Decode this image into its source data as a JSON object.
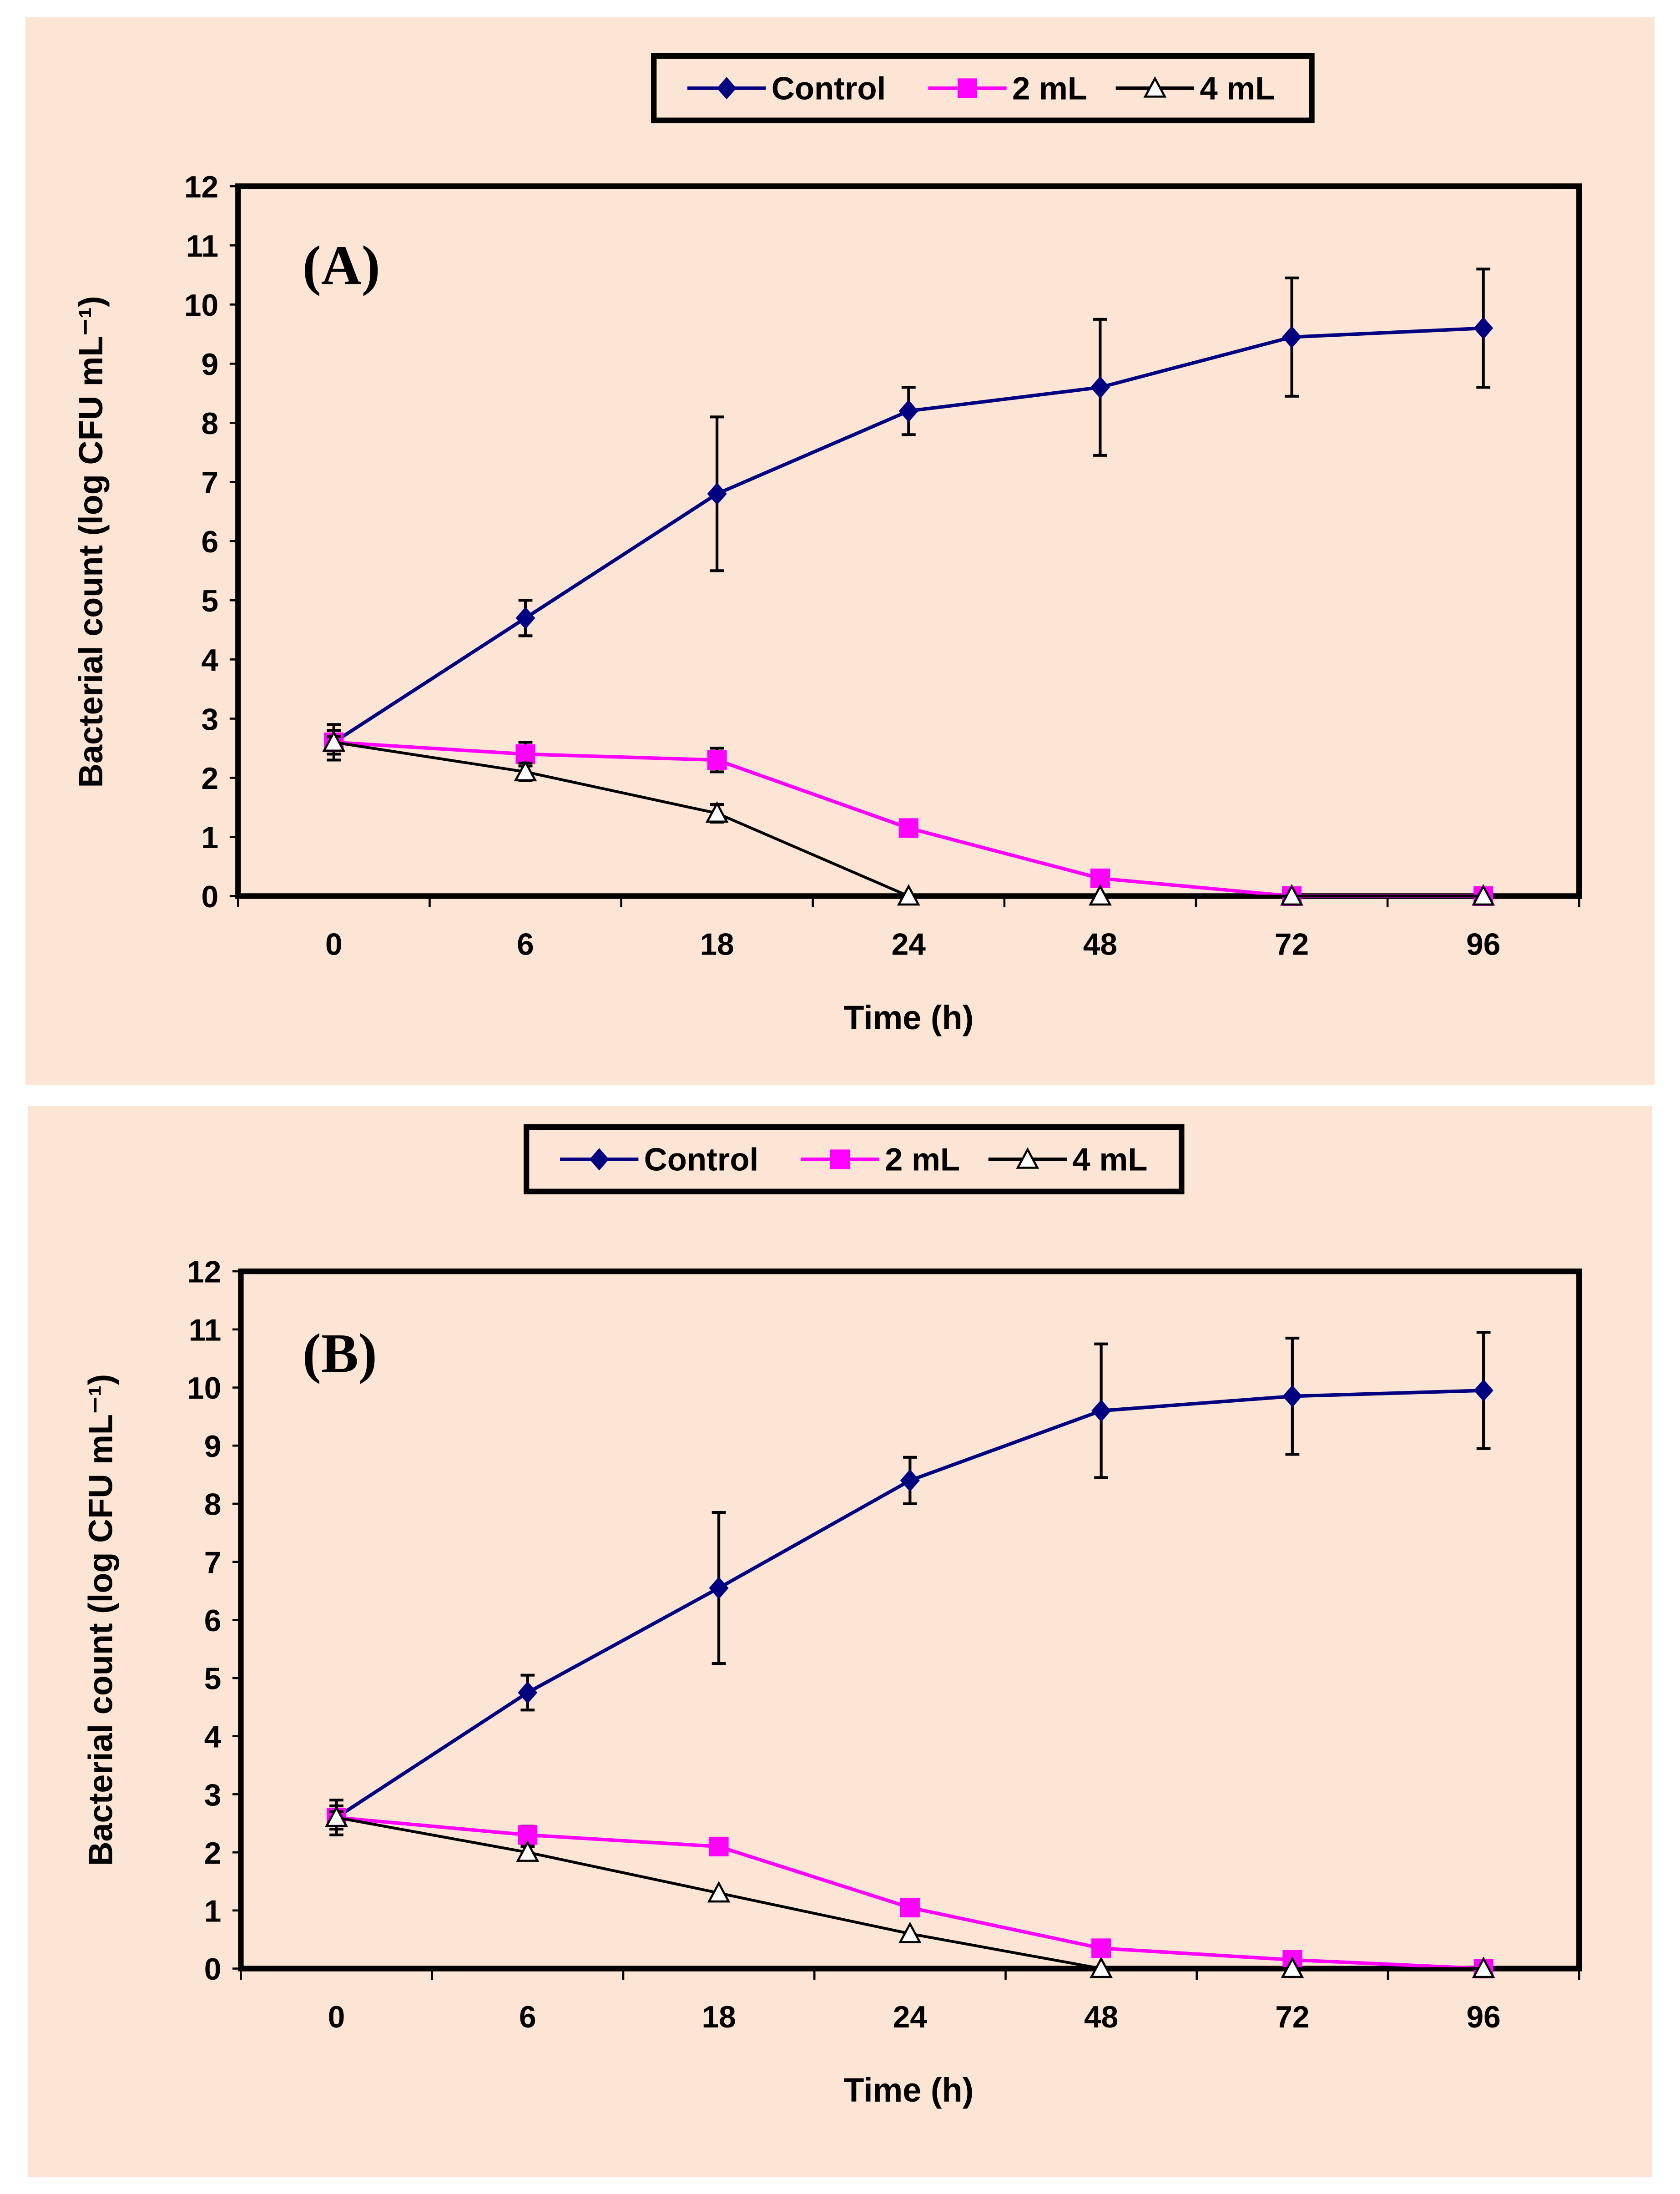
{
  "colors": {
    "background": "#fde5d6",
    "control": "#000080",
    "ml2": "#ff00ff",
    "ml4": "#000000"
  },
  "chart_data": [
    {
      "type": "line",
      "panel_label": "(A)",
      "xlabel": "Time (h)",
      "ylabel": "Bacterial count (log CFU mL⁻¹)",
      "categories": [
        "0",
        "6",
        "18",
        "24",
        "48",
        "72",
        "96"
      ],
      "ylim": [
        0,
        12
      ],
      "yticks": [
        "0",
        "1",
        "2",
        "3",
        "4",
        "5",
        "6",
        "7",
        "8",
        "9",
        "10",
        "11",
        "12"
      ],
      "legend_position": "top-center",
      "series": [
        {
          "name": "Control",
          "marker": "diamond",
          "values": [
            2.6,
            4.7,
            6.8,
            8.2,
            8.6,
            9.45,
            9.6
          ],
          "errors": [
            0.3,
            0.3,
            1.3,
            0.4,
            1.15,
            1.0,
            1.0
          ]
        },
        {
          "name": "2 mL",
          "marker": "square",
          "values": [
            2.6,
            2.4,
            2.3,
            1.15,
            0.3,
            0,
            0
          ],
          "errors": [
            0.2,
            0.2,
            0.2,
            0,
            0,
            0,
            0
          ]
        },
        {
          "name": "4 mL",
          "marker": "triangle",
          "values": [
            2.6,
            2.1,
            1.4,
            0,
            0,
            0,
            0
          ],
          "errors": [
            0.1,
            0.15,
            0.15,
            0,
            0,
            0,
            0
          ]
        }
      ]
    },
    {
      "type": "line",
      "panel_label": "(B)",
      "xlabel": "Time (h)",
      "ylabel": "Bacterial count (log CFU mL⁻¹)",
      "categories": [
        "0",
        "6",
        "18",
        "24",
        "48",
        "72",
        "96"
      ],
      "ylim": [
        0,
        12
      ],
      "yticks": [
        "0",
        "1",
        "2",
        "3",
        "4",
        "5",
        "6",
        "7",
        "8",
        "9",
        "10",
        "11",
        "12"
      ],
      "legend_position": "top-center",
      "series": [
        {
          "name": "Control",
          "marker": "diamond",
          "values": [
            2.6,
            4.75,
            6.55,
            8.4,
            9.6,
            9.85,
            9.95
          ],
          "errors": [
            0.3,
            0.3,
            1.3,
            0.4,
            1.15,
            1.0,
            1.0
          ]
        },
        {
          "name": "2 mL",
          "marker": "square",
          "values": [
            2.6,
            2.3,
            2.1,
            1.05,
            0.35,
            0.15,
            0
          ],
          "errors": [
            0.2,
            0.15,
            0,
            0,
            0,
            0,
            0
          ]
        },
        {
          "name": "4 mL",
          "marker": "triangle",
          "values": [
            2.6,
            2.0,
            1.3,
            0.6,
            0,
            0,
            0
          ],
          "errors": [
            0.1,
            0.1,
            0,
            0,
            0,
            0,
            0
          ]
        }
      ]
    }
  ]
}
